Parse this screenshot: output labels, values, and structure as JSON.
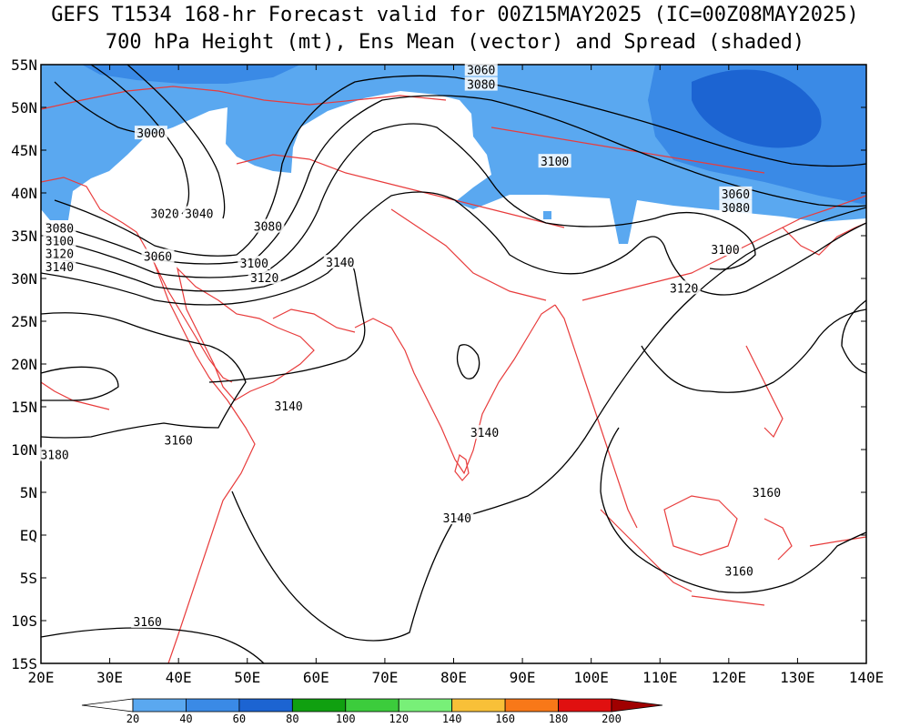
{
  "title_line1": "GEFS T1534 168-hr Forecast valid for 00Z15MAY2025 (IC=00Z08MAY2025)",
  "title_line2": "700 hPa Height (mt), Ens Mean (vector) and Spread (shaded)",
  "map": {
    "lon_range": [
      20,
      140
    ],
    "lat_range": [
      -15,
      55
    ],
    "lon_ticks": [
      {
        "value": 20,
        "label": "20E"
      },
      {
        "value": 30,
        "label": "30E"
      },
      {
        "value": 40,
        "label": "40E"
      },
      {
        "value": 50,
        "label": "50E"
      },
      {
        "value": 60,
        "label": "60E"
      },
      {
        "value": 70,
        "label": "70E"
      },
      {
        "value": 80,
        "label": "80E"
      },
      {
        "value": 90,
        "label": "90E"
      },
      {
        "value": 100,
        "label": "100E"
      },
      {
        "value": 110,
        "label": "110E"
      },
      {
        "value": 120,
        "label": "120E"
      },
      {
        "value": 130,
        "label": "130E"
      },
      {
        "value": 140,
        "label": "140E"
      }
    ],
    "lat_ticks": [
      {
        "value": 55,
        "label": "55N"
      },
      {
        "value": 50,
        "label": "50N"
      },
      {
        "value": 45,
        "label": "45N"
      },
      {
        "value": 40,
        "label": "40N"
      },
      {
        "value": 35,
        "label": "35N"
      },
      {
        "value": 30,
        "label": "30N"
      },
      {
        "value": 25,
        "label": "25N"
      },
      {
        "value": 20,
        "label": "20N"
      },
      {
        "value": 15,
        "label": "15N"
      },
      {
        "value": 10,
        "label": "10N"
      },
      {
        "value": 5,
        "label": "5N"
      },
      {
        "value": 0,
        "label": "EQ"
      },
      {
        "value": -5,
        "label": "5S"
      },
      {
        "value": -10,
        "label": "10S"
      },
      {
        "value": -15,
        "label": "15S"
      }
    ],
    "coast_color": "#e83c3c",
    "contour_color": "#000000",
    "contour_labels": [
      {
        "text": "3060",
        "lon": 84,
        "lat": 54.3
      },
      {
        "text": "3080",
        "lon": 84,
        "lat": 52.6
      },
      {
        "text": "3000",
        "lon": 36,
        "lat": 46.9
      },
      {
        "text": "3020",
        "lon": 38,
        "lat": 37.5
      },
      {
        "text": "3040",
        "lon": 43,
        "lat": 37.5
      },
      {
        "text": "3080",
        "lon": 53,
        "lat": 36.0
      },
      {
        "text": "3060",
        "lon": 37,
        "lat": 32.5
      },
      {
        "text": "3100",
        "lon": 51,
        "lat": 31.7
      },
      {
        "text": "3120",
        "lon": 52.5,
        "lat": 30.0
      },
      {
        "text": "3140",
        "lon": 63.5,
        "lat": 31.8
      },
      {
        "text": "3080",
        "lon": 22.7,
        "lat": 35.8
      },
      {
        "text": "3100",
        "lon": 22.7,
        "lat": 34.3
      },
      {
        "text": "3120",
        "lon": 22.7,
        "lat": 32.8
      },
      {
        "text": "3140",
        "lon": 22.7,
        "lat": 31.3
      },
      {
        "text": "3140",
        "lon": 56,
        "lat": 15.0
      },
      {
        "text": "3160",
        "lon": 40,
        "lat": 11.0
      },
      {
        "text": "3180",
        "lon": 22,
        "lat": 9.3
      },
      {
        "text": "3140",
        "lon": 84.5,
        "lat": 11.9
      },
      {
        "text": "3100",
        "lon": 94.7,
        "lat": 43.6
      },
      {
        "text": "3060",
        "lon": 121,
        "lat": 39.8
      },
      {
        "text": "3080",
        "lon": 121,
        "lat": 38.2
      },
      {
        "text": "3100",
        "lon": 119.5,
        "lat": 33.3
      },
      {
        "text": "3120",
        "lon": 113.5,
        "lat": 28.8
      },
      {
        "text": "3140",
        "lon": 80.5,
        "lat": 1.9
      },
      {
        "text": "3160",
        "lon": 125.5,
        "lat": 4.9
      },
      {
        "text": "3160",
        "lon": 121.5,
        "lat": -4.3
      },
      {
        "text": "3160",
        "lon": 35.5,
        "lat": -10.2
      }
    ]
  },
  "colorbar": {
    "colors": [
      "#ffffff",
      "#5aa8f0",
      "#3a8ae6",
      "#1c64d2",
      "#10a010",
      "#3ccc3c",
      "#78f078",
      "#f8c038",
      "#f87818",
      "#e01010",
      "#a00000"
    ],
    "labels": [
      "20",
      "40",
      "60",
      "80",
      "100",
      "120",
      "140",
      "160",
      "180",
      "200"
    ]
  }
}
